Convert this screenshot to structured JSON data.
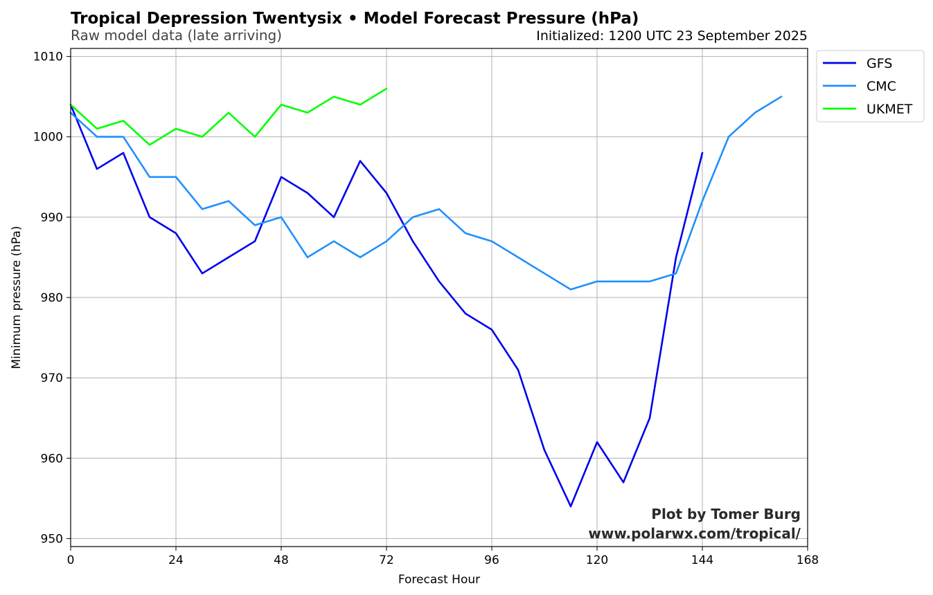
{
  "header": {
    "title": "Tropical Depression Twentysix • Model Forecast Pressure (hPa)",
    "subtitle": "Raw model data (late arriving)",
    "initialized": "Initialized: 1200 UTC 23 September 2025"
  },
  "credit": {
    "line1": "Plot by Tomer Burg",
    "line2": "www.polarwx.com/tropical/"
  },
  "chart_data": {
    "type": "line",
    "xlabel": "Forecast Hour",
    "ylabel": "Minimum pressure (hPa)",
    "xlim": [
      0,
      168
    ],
    "ylim": [
      949,
      1011
    ],
    "xticks": [
      0,
      24,
      48,
      72,
      96,
      120,
      144,
      168
    ],
    "yticks": [
      950,
      960,
      970,
      980,
      990,
      1000,
      1010
    ],
    "grid": true,
    "legend_position": "outside-top-right",
    "series": [
      {
        "name": "GFS",
        "color": "#0000ee",
        "x": [
          0,
          6,
          12,
          18,
          24,
          30,
          36,
          42,
          48,
          54,
          60,
          66,
          72,
          78,
          84,
          90,
          96,
          102,
          108,
          114,
          120,
          126,
          132,
          138,
          144
        ],
        "y": [
          1004,
          996,
          998,
          990,
          988,
          983,
          985,
          987,
          995,
          993,
          990,
          997,
          993,
          987,
          982,
          978,
          976,
          971,
          961,
          954,
          962,
          957,
          965,
          985,
          998
        ]
      },
      {
        "name": "CMC",
        "color": "#1e90ff",
        "x": [
          0,
          6,
          12,
          18,
          24,
          30,
          36,
          42,
          48,
          54,
          60,
          66,
          72,
          78,
          84,
          90,
          96,
          102,
          108,
          114,
          120,
          126,
          132,
          138,
          144,
          150,
          156,
          162
        ],
        "y": [
          1003,
          1000,
          1000,
          995,
          995,
          991,
          992,
          989,
          990,
          985,
          987,
          985,
          987,
          990,
          991,
          988,
          987,
          985,
          983,
          981,
          982,
          982,
          982,
          983,
          992,
          1000,
          1003,
          1005
        ]
      },
      {
        "name": "UKMET",
        "color": "#00ff00",
        "x": [
          0,
          6,
          12,
          18,
          24,
          30,
          36,
          42,
          48,
          54,
          60,
          66,
          72
        ],
        "y": [
          1004,
          1001,
          1002,
          999,
          1001,
          1000,
          1003,
          1000,
          1004,
          1003,
          1005,
          1004,
          1006
        ]
      }
    ]
  }
}
